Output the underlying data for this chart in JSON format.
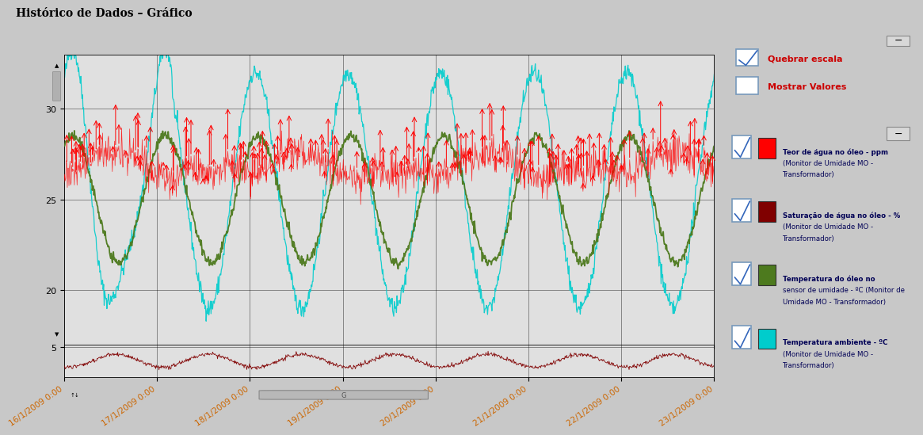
{
  "title": "Histórico de Dados – Gráfico",
  "title_font": 10,
  "bg_color": "#c8c8c8",
  "plot_bg_upper": "#e0e0e0",
  "plot_bg_lower": "#e0e0e0",
  "ylim_upper": [
    17,
    33
  ],
  "ylim_lower": [
    -0.5,
    5.5
  ],
  "yticks_upper": [
    20,
    25,
    30
  ],
  "yticks_lower": [
    5
  ],
  "x_labels": [
    "16/1/2009 0:00",
    "17/1/2009 0:00",
    "18/1/2009 0:00",
    "19/1/2009 0:00",
    "20/1/2009 0:00",
    "21/1/2009 0:00",
    "22/1/2009 0:00",
    "23/1/2009 0:00"
  ],
  "colors": {
    "red": "#ff0000",
    "dark_red": "#800000",
    "olive": "#4d7a1e",
    "cyan": "#00cccc"
  },
  "legend_box1_bg": "#c8e832",
  "legend_box2_bg": "#ffffcc",
  "legend_items": [
    {
      "color": "#ff0000",
      "label": "Teor de água no óleo - ppm\n(Monitor de Umidade MO -\nTransformador)"
    },
    {
      "color": "#800000",
      "label": "Saturação de água no óleo - %\n(Monitor de Umidade MO -\nTransformador)"
    },
    {
      "color": "#4d7a1e",
      "label": "Temperatura do óleo no\nsensor de umidade - ºC (Monitor de\nUmidade MO - Transformador)"
    },
    {
      "color": "#00cccc",
      "label": "Temperatura ambiente - ºC\n(Monitor de Umidade MO -\nTransformador)"
    }
  ]
}
